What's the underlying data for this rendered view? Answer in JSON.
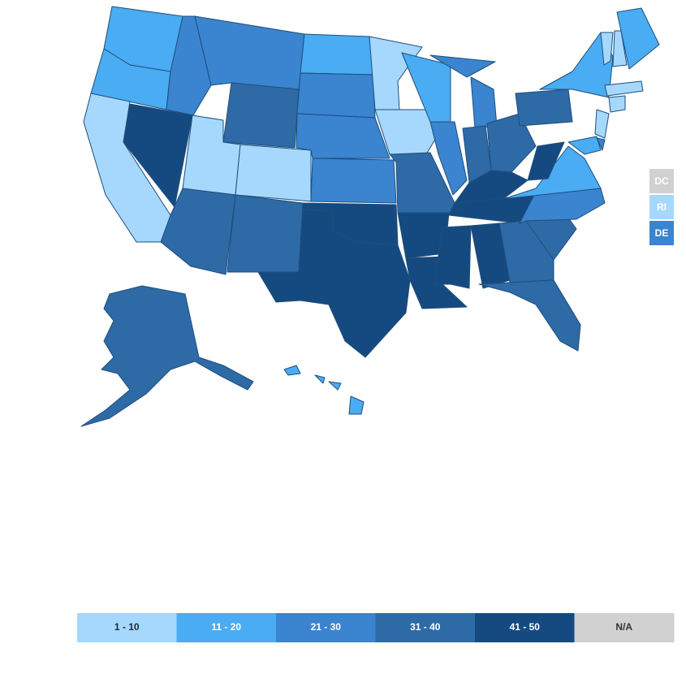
{
  "legend": {
    "items": [
      {
        "label": "1 - 10",
        "color": "#a6d8fd",
        "text_color": "#1a2a3a"
      },
      {
        "label": "11 - 20",
        "color": "#4aacf2",
        "text_color": "#ffffff"
      },
      {
        "label": "21 - 30",
        "color": "#3a84d0",
        "text_color": "#ffffff"
      },
      {
        "label": "31 - 40",
        "color": "#2e6aa6",
        "text_color": "#ffffff"
      },
      {
        "label": "41 - 50",
        "color": "#154a80",
        "text_color": "#ffffff"
      },
      {
        "label": "N/A",
        "color": "#d1d1d1",
        "text_color": "#333333"
      }
    ]
  },
  "small_states": [
    {
      "label": "DC",
      "color": "#d1d1d1"
    },
    {
      "label": "RI",
      "color": "#a6d8fd"
    },
    {
      "label": "DE",
      "color": "#3a84d0"
    }
  ]
}
